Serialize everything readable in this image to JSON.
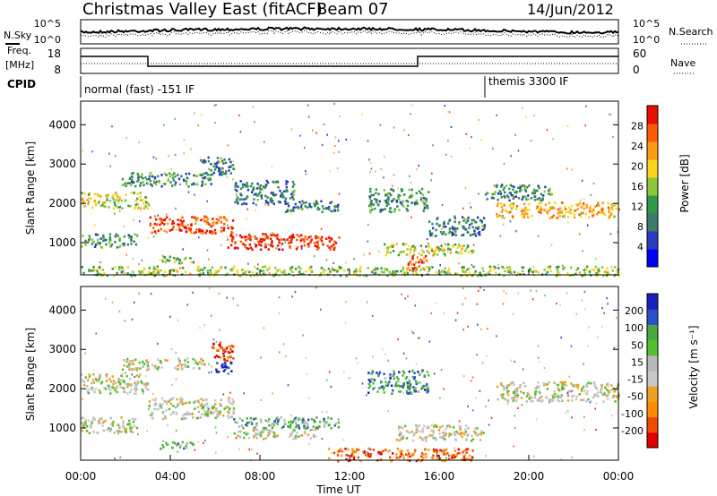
{
  "header": {
    "title": "Christmas Valley East (fitACF)",
    "beam": "Beam 07",
    "date": "14/Jun/2012"
  },
  "panels": {
    "nsky": {
      "label": "N.Sky",
      "ticks": [
        "10^5",
        "10^0"
      ]
    },
    "nsearch": {
      "label": "N.Search",
      "ticks": [
        "10^5",
        "10^0"
      ]
    },
    "freq": {
      "label_line1": "Freq.",
      "label_line2": "[MHz]",
      "ticks": [
        "18",
        "8"
      ]
    },
    "nave": {
      "label": "Nave",
      "ticks": [
        "60",
        "0"
      ]
    },
    "cpid": {
      "label": "CPID",
      "segments": [
        "normal (fast) -151 IF",
        "themis 3300 IF"
      ]
    }
  },
  "chart_data": [
    {
      "type": "heatmap",
      "ylabel": "Slant Range [km]",
      "xlabel": "Time UT",
      "x_ticks": [
        "00:00",
        "04:00",
        "08:00",
        "12:00",
        "16:00",
        "20:00",
        "00:00"
      ],
      "y_ticks": [
        "1000",
        "2000",
        "3000",
        "4000"
      ],
      "ylim": [
        180,
        4600
      ],
      "colorbar_label": "Power [dB]",
      "colorbar_ticks": [
        "28",
        "24",
        "20",
        "16",
        "12",
        "8",
        "4"
      ],
      "colorbar_colors": [
        "#0000ff",
        "#2a3cc0",
        "#3c7a6a",
        "#2f9a4a",
        "#8cc63c",
        "#ffd21e",
        "#ff9a14",
        "#ff5a00",
        "#e81000"
      ],
      "regions": [
        {
          "t0": 0.0,
          "t1": 3.0,
          "r0": 1900,
          "r1": 2300,
          "level": 0.55
        },
        {
          "t0": 3.0,
          "t1": 6.8,
          "r0": 1250,
          "r1": 1700,
          "level": 0.85
        },
        {
          "t0": 6.5,
          "t1": 11.5,
          "r0": 850,
          "r1": 1250,
          "level": 0.95
        },
        {
          "t0": 0.0,
          "t1": 2.5,
          "r0": 900,
          "r1": 1250,
          "level": 0.35
        },
        {
          "t0": 1.8,
          "t1": 5.8,
          "r0": 2450,
          "r1": 2800,
          "level": 0.35
        },
        {
          "t0": 5.3,
          "t1": 6.8,
          "r0": 2700,
          "r1": 3200,
          "level": 0.3
        },
        {
          "t0": 6.8,
          "t1": 9.5,
          "r0": 2000,
          "r1": 2600,
          "level": 0.3
        },
        {
          "t0": 9.0,
          "t1": 11.5,
          "r0": 1800,
          "r1": 2100,
          "level": 0.3
        },
        {
          "t0": 12.8,
          "t1": 15.5,
          "r0": 1800,
          "r1": 2400,
          "level": 0.35
        },
        {
          "t0": 13.5,
          "t1": 17.5,
          "r0": 700,
          "r1": 1000,
          "level": 0.55
        },
        {
          "t0": 14.5,
          "t1": 15.4,
          "r0": 300,
          "r1": 700,
          "level": 0.9
        },
        {
          "t0": 0.0,
          "t1": 24.0,
          "r0": 180,
          "r1": 420,
          "level": 0.5
        },
        {
          "t0": 18.5,
          "t1": 24.0,
          "r0": 1650,
          "r1": 2050,
          "level": 0.7
        },
        {
          "t0": 18.0,
          "t1": 21.0,
          "r0": 2100,
          "r1": 2500,
          "level": 0.35
        },
        {
          "t0": 15.5,
          "t1": 18.0,
          "r0": 1200,
          "r1": 1700,
          "level": 0.3
        },
        {
          "t0": 3.5,
          "t1": 5.0,
          "r0": 500,
          "r1": 700,
          "level": 0.45
        }
      ]
    },
    {
      "type": "heatmap",
      "ylabel": "Slant Range [km]",
      "xlabel": "Time UT",
      "x_ticks": [
        "00:00",
        "04:00",
        "08:00",
        "12:00",
        "16:00",
        "20:00",
        "00:00"
      ],
      "y_ticks": [
        "1000",
        "2000",
        "3000",
        "4000"
      ],
      "ylim": [
        180,
        4600
      ],
      "colorbar_label": "Velocity [m s⁻¹]",
      "colorbar_ticks": [
        "200",
        "100",
        "50",
        "15",
        "-15",
        "-50",
        "-100",
        "-200"
      ],
      "colorbar_colors": [
        "#e00000",
        "#f04a00",
        "#ff8c00",
        "#f0a020",
        "#c8c8c8",
        "#b8b8b8",
        "#50c030",
        "#4aa840",
        "#2a50c8",
        "#1a20c0"
      ],
      "regions": [
        {
          "t0": 0.0,
          "t1": 3.0,
          "r0": 1900,
          "r1": 2400,
          "level": 0.5
        },
        {
          "t0": 3.0,
          "t1": 6.8,
          "r0": 1250,
          "r1": 1800,
          "level": 0.5
        },
        {
          "t0": 6.8,
          "t1": 11.5,
          "r0": 1000,
          "r1": 1300,
          "level": 0.7
        },
        {
          "t0": 6.8,
          "t1": 10.5,
          "r0": 750,
          "r1": 1000,
          "level": 0.5
        },
        {
          "t0": 5.8,
          "t1": 6.8,
          "r0": 2700,
          "r1": 3200,
          "level": 0.1
        },
        {
          "t0": 6.0,
          "t1": 6.8,
          "r0": 2400,
          "r1": 2700,
          "level": 0.9
        },
        {
          "t0": 12.8,
          "t1": 15.5,
          "r0": 1900,
          "r1": 2500,
          "level": 0.75
        },
        {
          "t0": 11.0,
          "t1": 17.5,
          "r0": 180,
          "r1": 500,
          "level": 0.2
        },
        {
          "t0": 14.0,
          "t1": 18.0,
          "r0": 700,
          "r1": 1100,
          "level": 0.5
        },
        {
          "t0": 18.5,
          "t1": 24.0,
          "r0": 1700,
          "r1": 2200,
          "level": 0.5
        },
        {
          "t0": 1.8,
          "t1": 5.5,
          "r0": 2500,
          "r1": 2800,
          "level": 0.5
        },
        {
          "t0": 0.0,
          "t1": 2.5,
          "r0": 900,
          "r1": 1300,
          "level": 0.5
        },
        {
          "t0": 3.5,
          "t1": 5.0,
          "r0": 500,
          "r1": 700,
          "level": 0.7
        }
      ]
    }
  ]
}
